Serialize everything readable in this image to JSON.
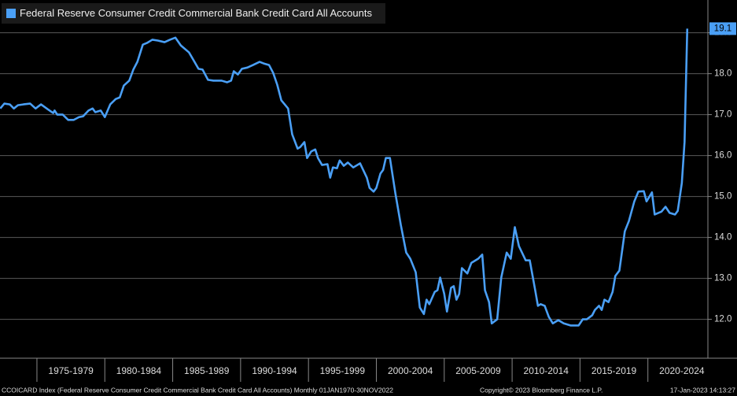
{
  "chart_data": {
    "type": "line",
    "series": [
      {
        "name": "Federal Reserve Consumer Credit Commercial Bank Credit Card All Accounts",
        "color": "#4a9ff5",
        "x": [
          1972.3,
          1972.6,
          1973.0,
          1973.3,
          1973.6,
          1974.0,
          1974.5,
          1974.9,
          1975.3,
          1975.8,
          1976.2,
          1976.3,
          1976.5,
          1976.9,
          1977.3,
          1977.7,
          1978.1,
          1978.4,
          1978.8,
          1979.1,
          1979.3,
          1979.7,
          1980.0,
          1980.4,
          1980.8,
          1981.1,
          1981.4,
          1981.8,
          1982.1,
          1982.4,
          1982.8,
          1983.1,
          1983.5,
          1983.9,
          1984.4,
          1984.8,
          1985.2,
          1985.6,
          1986.2,
          1986.5,
          1986.9,
          1987.2,
          1987.6,
          1988.0,
          1988.6,
          1989.0,
          1989.3,
          1989.5,
          1989.8,
          1990.1,
          1990.5,
          1990.9,
          1991.4,
          1991.7,
          1992.1,
          1992.4,
          1992.7,
          1993.0,
          1993.5,
          1993.8,
          1994.2,
          1994.4,
          1994.7,
          1994.9,
          1995.2,
          1995.5,
          1995.7,
          1996.0,
          1996.4,
          1996.6,
          1996.8,
          1997.1,
          1997.3,
          1997.6,
          1997.9,
          1998.3,
          1998.8,
          1999.3,
          1999.5,
          1999.8,
          2000.0,
          2000.3,
          2000.5,
          2000.7,
          2001.0,
          2001.4,
          2001.8,
          2002.2,
          2002.5,
          2002.9,
          2003.2,
          2003.5,
          2003.7,
          2003.9,
          2004.3,
          2004.5,
          2004.7,
          2005.0,
          2005.2,
          2005.5,
          2005.7,
          2005.9,
          2006.1,
          2006.3,
          2006.7,
          2007.0,
          2007.5,
          2007.8,
          2008.0,
          2008.3,
          2008.5,
          2008.9,
          2009.2,
          2009.6,
          2009.9,
          2010.2,
          2010.5,
          2011.0,
          2011.3,
          2011.7,
          2011.9,
          2012.1,
          2012.4,
          2012.7,
          2013.0,
          2013.4,
          2013.8,
          2014.3,
          2014.9,
          2015.2,
          2015.5,
          2015.9,
          2016.1,
          2016.4,
          2016.6,
          2016.8,
          2017.1,
          2017.4,
          2017.6,
          2017.9,
          2018.3,
          2018.6,
          2019.0,
          2019.3,
          2019.7,
          2019.9,
          2020.3,
          2020.5,
          2021.0,
          2021.3,
          2021.6,
          2022.0,
          2022.2,
          2022.5,
          2022.7,
          2022.9
        ],
        "values": [
          17.15,
          17.27,
          17.25,
          17.15,
          17.23,
          17.25,
          17.27,
          17.15,
          17.25,
          17.13,
          17.04,
          17.1,
          17.0,
          17.0,
          16.87,
          16.87,
          16.94,
          16.96,
          17.1,
          17.15,
          17.06,
          17.1,
          16.94,
          17.25,
          17.38,
          17.42,
          17.71,
          17.83,
          18.1,
          18.29,
          18.71,
          18.75,
          18.83,
          18.81,
          18.77,
          18.83,
          18.88,
          18.69,
          18.52,
          18.35,
          18.12,
          18.1,
          17.85,
          17.83,
          17.83,
          17.79,
          17.83,
          18.06,
          17.98,
          18.12,
          18.15,
          18.21,
          18.29,
          18.25,
          18.21,
          18.02,
          17.73,
          17.35,
          17.15,
          16.52,
          16.17,
          16.21,
          16.33,
          15.94,
          16.1,
          16.15,
          15.94,
          15.77,
          15.79,
          15.46,
          15.71,
          15.69,
          15.88,
          15.75,
          15.83,
          15.71,
          15.81,
          15.46,
          15.21,
          15.12,
          15.21,
          15.56,
          15.65,
          15.94,
          15.94,
          15.08,
          14.31,
          13.63,
          13.48,
          13.15,
          12.29,
          12.13,
          12.48,
          12.37,
          12.67,
          12.71,
          13.02,
          12.62,
          12.19,
          12.77,
          12.81,
          12.48,
          12.62,
          13.25,
          13.12,
          13.38,
          13.48,
          13.58,
          12.71,
          12.42,
          11.9,
          12.0,
          13.02,
          13.63,
          13.48,
          14.25,
          13.79,
          13.44,
          13.44,
          12.71,
          12.33,
          12.37,
          12.33,
          12.06,
          11.9,
          11.98,
          11.9,
          11.85,
          11.85,
          12.0,
          12.0,
          12.1,
          12.23,
          12.33,
          12.23,
          12.48,
          12.42,
          12.67,
          13.06,
          13.19,
          14.15,
          14.4,
          14.88,
          15.12,
          15.13,
          14.88,
          15.1,
          14.56,
          14.63,
          14.75,
          14.6,
          14.56,
          14.65,
          15.33,
          16.33,
          19.1
        ]
      }
    ],
    "xlim": [
      1972.28,
      2024.42
    ],
    "xticks": [
      {
        "value": 1975,
        "label": "1975-1979"
      },
      {
        "value": 1980,
        "label": "1980-1984"
      },
      {
        "value": 1985,
        "label": "1985-1989"
      },
      {
        "value": 1990,
        "label": "1990-1994"
      },
      {
        "value": 1995,
        "label": "1995-1999"
      },
      {
        "value": 2000,
        "label": "2000-2004"
      },
      {
        "value": 2005,
        "label": "2005-2009"
      },
      {
        "value": 2010,
        "label": "2010-2014"
      },
      {
        "value": 2015,
        "label": "2015-2019"
      },
      {
        "value": 2020,
        "label": "2020-2024"
      }
    ],
    "ylim": [
      11.05,
      19.8
    ],
    "yticks": [
      {
        "value": 12,
        "label": "12.0"
      },
      {
        "value": 13,
        "label": "13.0"
      },
      {
        "value": 14,
        "label": "14.0"
      },
      {
        "value": 15,
        "label": "15.0"
      },
      {
        "value": 16,
        "label": "16.0"
      },
      {
        "value": 17,
        "label": "17.0"
      },
      {
        "value": 18,
        "label": "18.0"
      },
      {
        "value": 19,
        "label": "19.0"
      }
    ],
    "grid": true,
    "legend": "top-left",
    "footer": {
      "source": "CCOICARD Index (Federal Reserve Consumer Credit Commercial Bank Credit Card All Accounts)  Monthly 01JAN1970-30NOV2022",
      "copyright": "Copyright© 2023 Bloomberg Finance L.P.",
      "timestamp": "17-Jan-2023 14:13:27"
    }
  }
}
